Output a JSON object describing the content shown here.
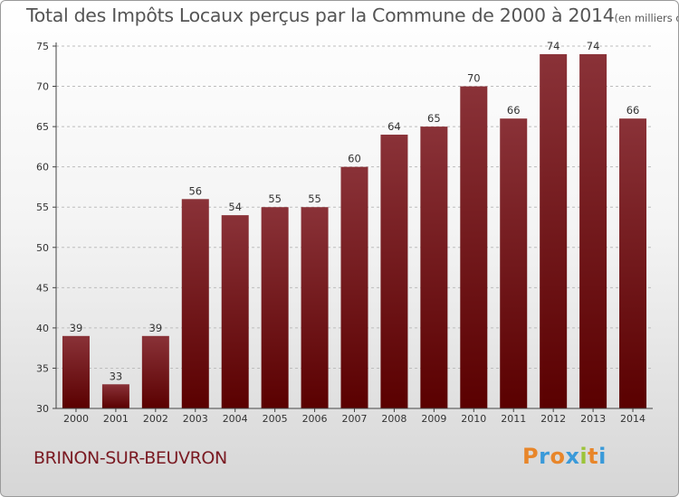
{
  "title": "Total des Impôts Locaux perçus par la Commune de 2000 à 2014",
  "subtitle": "(en milliers d'€)",
  "commune": "BRINON-SUR-BEUVRON",
  "logo": {
    "letters": [
      "P",
      "r",
      "o",
      "x",
      "i",
      "t",
      "i"
    ],
    "colors": [
      "#e8862a",
      "#3a9ad9",
      "#e8862a",
      "#3a9ad9",
      "#9cc43a",
      "#e8862a",
      "#3a9ad9"
    ]
  },
  "colors": {
    "bar_top": "#8a3238",
    "bar_bottom": "#5a0000",
    "grid": "#bdbdbd",
    "axis": "#444444"
  },
  "chart_data": {
    "type": "bar",
    "categories": [
      "2000",
      "2001",
      "2002",
      "2003",
      "2004",
      "2005",
      "2006",
      "2007",
      "2008",
      "2009",
      "2010",
      "2011",
      "2012",
      "2013",
      "2014"
    ],
    "values": [
      39,
      33,
      39,
      56,
      54,
      55,
      55,
      60,
      64,
      65,
      70,
      66,
      74,
      74,
      66
    ],
    "ylim": [
      30,
      75
    ],
    "yticks": [
      30,
      35,
      40,
      45,
      50,
      55,
      60,
      65,
      70,
      75
    ],
    "grid": true
  }
}
